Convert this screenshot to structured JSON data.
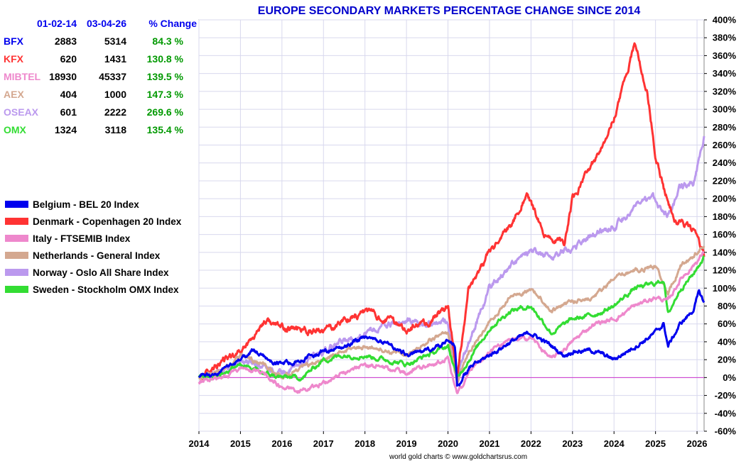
{
  "chart_data": {
    "type": "line",
    "title": "EUROPE SECONDARY MARKETS PERCENTAGE CHANGE SINCE 2014",
    "footer": "world gold charts © www.goldchartsrus.com",
    "xlim": [
      2014,
      2026.17
    ],
    "ylim": [
      -60,
      400
    ],
    "x_ticks": [
      "2014",
      "2015",
      "2016",
      "2017",
      "2018",
      "2019",
      "2020",
      "2021",
      "2022",
      "2023",
      "2024",
      "2025",
      "2026"
    ],
    "y_ticks": [
      "400%",
      "380%",
      "360%",
      "340%",
      "320%",
      "300%",
      "280%",
      "260%",
      "240%",
      "220%",
      "200%",
      "180%",
      "160%",
      "140%",
      "120%",
      "100%",
      "80%",
      "60%",
      "40%",
      "20%",
      "0%",
      "-20%",
      "-40%",
      "-60%"
    ],
    "grid": true,
    "legend_position": "left",
    "table": {
      "headers": [
        "01-02-14",
        "03-04-26",
        "% Change"
      ],
      "rows": [
        {
          "code": "BFX",
          "start": "2883",
          "end": "5314",
          "change": "84.3 %",
          "color": "#0000ee"
        },
        {
          "code": "KFX",
          "start": "620",
          "end": "1431",
          "change": "130.8 %",
          "color": "#ff3333"
        },
        {
          "code": "MIBTEL",
          "start": "18930",
          "end": "45337",
          "change": "139.5 %",
          "color": "#ee88cc"
        },
        {
          "code": "AEX",
          "start": "404",
          "end": "1000",
          "change": "147.3 %",
          "color": "#d4a890"
        },
        {
          "code": "OSEAX",
          "start": "601",
          "end": "2222",
          "change": "269.6 %",
          "color": "#bb99ee"
        },
        {
          "code": "OMX",
          "start": "1324",
          "end": "3118",
          "change": "135.4 %",
          "color": "#33dd33"
        }
      ],
      "change_color": "#009900",
      "header_color": "#0000ee"
    },
    "series": [
      {
        "name": "Norway -  Oslo All Share Index",
        "color": "#bb99ee",
        "x": [
          2014,
          2014.5,
          2015,
          2015.5,
          2016,
          2016.5,
          2017,
          2017.5,
          2018,
          2018.5,
          2019,
          2019.5,
          2020,
          2020.22,
          2020.5,
          2021,
          2021.5,
          2022,
          2022.5,
          2023,
          2023.5,
          2024,
          2024.5,
          2025,
          2025.3,
          2025.6,
          2025.9,
          2026.17
        ],
        "y": [
          0,
          5,
          20,
          15,
          5,
          15,
          30,
          40,
          50,
          58,
          62,
          60,
          62,
          0,
          40,
          100,
          125,
          140,
          135,
          145,
          160,
          170,
          190,
          200,
          180,
          212,
          215,
          270
        ]
      },
      {
        "name": "Denmark - Copenhagen 20 Index",
        "color": "#ff3333",
        "x": [
          2014,
          2014.5,
          2015,
          2015.3,
          2015.6,
          2016,
          2016.5,
          2017,
          2017.5,
          2018,
          2018.5,
          2019,
          2019.5,
          2020,
          2020.22,
          2020.5,
          2021,
          2021.5,
          2021.9,
          2022.3,
          2022.8,
          2023,
          2023.5,
          2024,
          2024.3,
          2024.5,
          2024.8,
          2025,
          2025.2,
          2025.5,
          2025.9,
          2026.17
        ],
        "y": [
          0,
          15,
          30,
          45,
          65,
          55,
          55,
          50,
          65,
          75,
          65,
          55,
          60,
          80,
          0,
          100,
          140,
          170,
          205,
          160,
          150,
          200,
          240,
          290,
          340,
          375,
          320,
          250,
          210,
          175,
          165,
          135
        ]
      },
      {
        "name": "Netherlands - General Index",
        "color": "#d4a890",
        "x": [
          2014,
          2014.5,
          2015,
          2015.5,
          2016,
          2016.5,
          2017,
          2017.5,
          2018,
          2018.5,
          2019,
          2019.5,
          2020,
          2020.22,
          2020.5,
          2021,
          2021.5,
          2022,
          2022.5,
          2023,
          2023.5,
          2024,
          2024.5,
          2025,
          2025.3,
          2025.6,
          2025.9,
          2026.17
        ],
        "y": [
          0,
          5,
          25,
          15,
          0,
          10,
          20,
          30,
          35,
          30,
          25,
          40,
          50,
          -5,
          30,
          60,
          90,
          100,
          75,
          85,
          90,
          110,
          120,
          125,
          95,
          125,
          135,
          147
        ]
      },
      {
        "name": "Sweden -  Stockholm OMX Index",
        "color": "#33dd33",
        "x": [
          2014,
          2014.5,
          2015,
          2015.5,
          2016,
          2016.5,
          2017,
          2017.5,
          2018,
          2018.5,
          2019,
          2019.5,
          2020,
          2020.22,
          2020.5,
          2021,
          2021.5,
          2022,
          2022.5,
          2023,
          2023.5,
          2024,
          2024.5,
          2025,
          2025.2,
          2025.3,
          2025.6,
          2025.9,
          2026.17
        ],
        "y": [
          0,
          3,
          15,
          5,
          0,
          0,
          20,
          25,
          25,
          20,
          15,
          25,
          35,
          0,
          20,
          55,
          75,
          80,
          50,
          65,
          70,
          80,
          100,
          105,
          110,
          70,
          100,
          115,
          135
        ]
      },
      {
        "name": "Italy - FTSEMIB Index",
        "color": "#ee88cc",
        "x": [
          2014,
          2014.5,
          2015,
          2015.5,
          2016,
          2016.5,
          2017,
          2017.5,
          2018,
          2018.5,
          2019,
          2019.5,
          2020,
          2020.22,
          2020.5,
          2021,
          2021.5,
          2022,
          2022.5,
          2023,
          2023.5,
          2024,
          2024.5,
          2025,
          2025.3,
          2025.6,
          2025.9,
          2026.17
        ],
        "y": [
          -5,
          0,
          10,
          5,
          -10,
          -15,
          -5,
          5,
          15,
          10,
          5,
          15,
          20,
          -20,
          5,
          30,
          40,
          45,
          20,
          40,
          60,
          65,
          80,
          90,
          85,
          110,
          125,
          140
        ]
      },
      {
        "name": "Belgium - BEL 20 Index",
        "color": "#0000ee",
        "x": [
          2014,
          2014.5,
          2015,
          2015.3,
          2015.6,
          2016,
          2016.5,
          2017,
          2017.5,
          2018,
          2018.5,
          2019,
          2019.5,
          2020,
          2020.17,
          2020.22,
          2020.5,
          2021,
          2021.5,
          2022,
          2022.5,
          2022.8,
          2023,
          2023.5,
          2024,
          2024.5,
          2025,
          2025.2,
          2025.3,
          2025.6,
          2025.9,
          2026.05,
          2026.17
        ],
        "y": [
          0,
          5,
          20,
          32,
          20,
          15,
          20,
          30,
          35,
          45,
          40,
          25,
          30,
          40,
          35,
          -10,
          10,
          25,
          40,
          50,
          35,
          25,
          30,
          30,
          20,
          35,
          50,
          60,
          35,
          60,
          75,
          95,
          84
        ]
      }
    ],
    "legend_order": [
      "Belgium - BEL 20 Index",
      "Denmark - Copenhagen 20 Index",
      "Italy - FTSEMIB Index",
      "Netherlands - General Index",
      "Norway -  Oslo All Share Index",
      "Sweden -  Stockholm OMX Index"
    ],
    "zero_line_color": "#cc33cc",
    "title_color": "#0000cc"
  }
}
